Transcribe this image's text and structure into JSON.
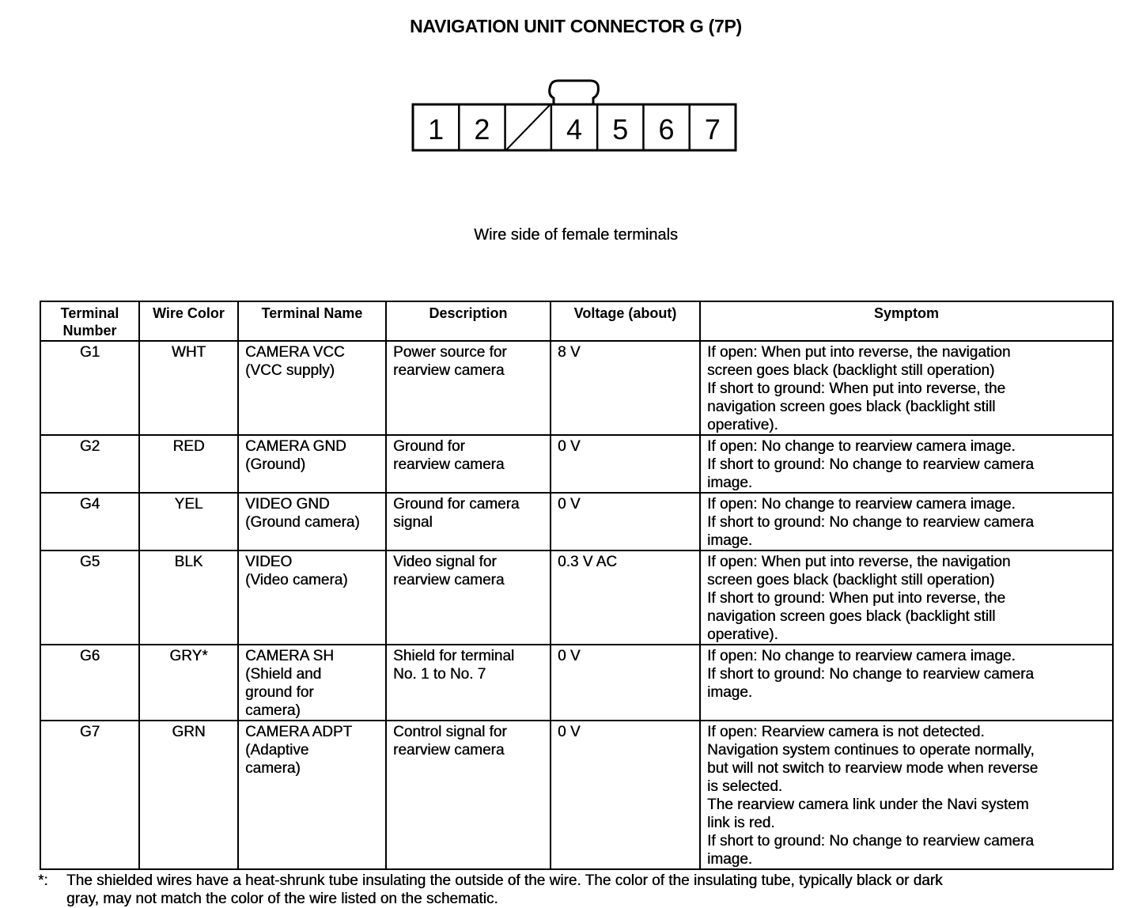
{
  "title": "NAVIGATION UNIT CONNECTOR G (7P)",
  "connector": {
    "terminals": [
      "1",
      "2",
      "",
      "4",
      "5",
      "6",
      "7"
    ],
    "empty_terminal_index": 2
  },
  "subtitle": "Wire side of female terminals",
  "table": {
    "headers": [
      "Terminal Number",
      "Wire Color",
      "Terminal Name",
      "Description",
      "Voltage (about)",
      "Symptom"
    ],
    "rows": [
      {
        "terminal": "G1",
        "wire": "WHT",
        "name": [
          "CAMERA VCC",
          "(VCC supply)"
        ],
        "description": [
          "Power source for",
          "rearview camera"
        ],
        "voltage": "8 V",
        "symptom": [
          "If open: When put into reverse, the navigation",
          "screen goes black (backlight still operation)",
          "If short to ground: When put into reverse, the",
          "navigation screen goes black (backlight still",
          "operative)."
        ]
      },
      {
        "terminal": "G2",
        "wire": "RED",
        "name": [
          "CAMERA GND",
          "(Ground)"
        ],
        "description": [
          "Ground for",
          "rearview camera"
        ],
        "voltage": "0 V",
        "symptom": [
          "If open: No change to rearview camera image.",
          "If short to ground: No change to rearview camera",
          "image."
        ]
      },
      {
        "terminal": "G4",
        "wire": "YEL",
        "name": [
          "VIDEO GND",
          "(Ground camera)"
        ],
        "description": [
          "Ground for camera",
          "signal"
        ],
        "voltage": "0 V",
        "symptom": [
          "If open: No change to rearview camera image.",
          "If short to ground: No change to rearview camera",
          "image."
        ]
      },
      {
        "terminal": "G5",
        "wire": "BLK",
        "name": [
          "VIDEO",
          "(Video camera)"
        ],
        "description": [
          "Video signal for",
          "rearview camera"
        ],
        "voltage": "0.3 V AC",
        "symptom": [
          "If open: When put into reverse, the navigation",
          "screen goes black (backlight still operation)",
          "If short to ground: When put into reverse, the",
          "navigation screen goes black (backlight still",
          "operative)."
        ]
      },
      {
        "terminal": "G6",
        "wire": "GRY*",
        "name": [
          "CAMERA SH",
          "(Shield and",
          "ground for",
          "camera)"
        ],
        "description": [
          "Shield for terminal",
          "No. 1 to No. 7"
        ],
        "voltage": "0 V",
        "symptom": [
          "If open: No change to rearview camera image.",
          "If short to ground: No change to rearview camera",
          "image."
        ]
      },
      {
        "terminal": "G7",
        "wire": "GRN",
        "name": [
          "CAMERA ADPT",
          "(Adaptive",
          "camera)"
        ],
        "description": [
          "Control signal for",
          "rearview camera"
        ],
        "voltage": "0 V",
        "symptom": [
          "If open: Rearview camera is not detected.",
          "Navigation system continues to operate normally,",
          "but will not switch to rearview mode when reverse",
          "is selected.",
          "The rearview camera link under the Navi system",
          "link is red.",
          "If short to ground: No change to rearview camera",
          "image."
        ]
      }
    ]
  },
  "footnote": {
    "mark": "*:",
    "lines": [
      "The shielded wires have a heat-shrunk tube insulating the outside of the wire. The color of the insulating tube, typically black or dark",
      "gray, may not match the color of the wire listed on the schematic."
    ]
  }
}
